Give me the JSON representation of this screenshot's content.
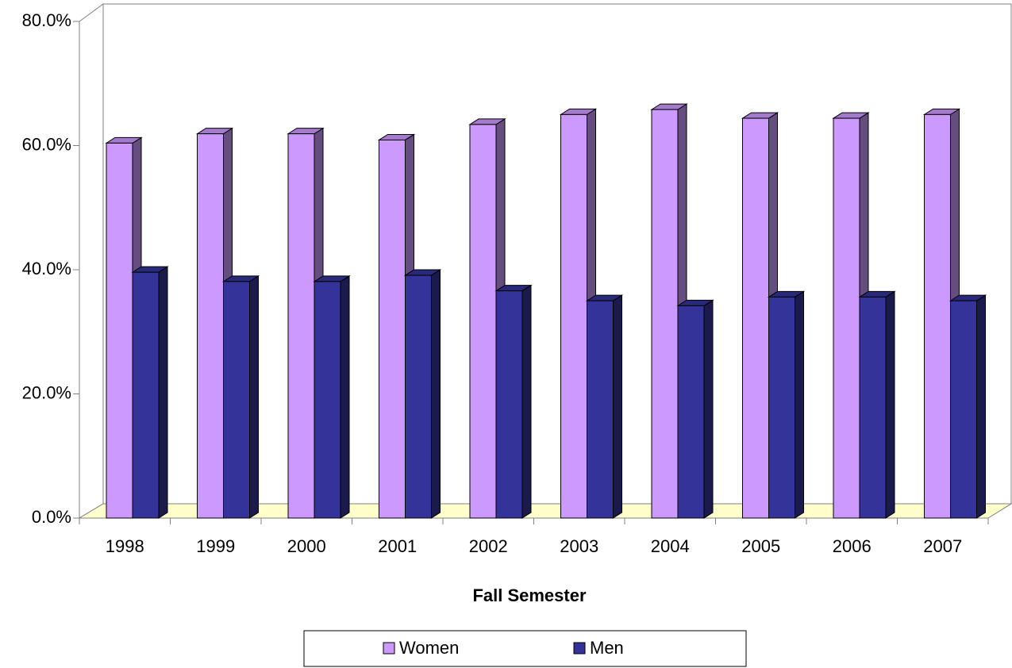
{
  "chart_data": {
    "type": "bar3d",
    "x_label": "Fall Semester",
    "categories": [
      "1998",
      "1999",
      "2000",
      "2001",
      "2002",
      "2003",
      "2004",
      "2005",
      "2006",
      "2007"
    ],
    "series": [
      {
        "name": "Women",
        "color": "#cc99ff",
        "values": [
          60.4,
          61.9,
          61.9,
          60.9,
          63.4,
          65.0,
          65.8,
          64.4,
          64.4,
          65.0
        ]
      },
      {
        "name": "Men",
        "color": "#333399",
        "values": [
          39.6,
          38.1,
          38.1,
          39.1,
          36.6,
          35.0,
          34.2,
          35.6,
          35.6,
          35.0
        ]
      }
    ],
    "ylim": [
      0,
      80
    ],
    "yticks": [
      {
        "value": 0,
        "label": "0.0%"
      },
      {
        "value": 20,
        "label": "20.0%"
      },
      {
        "value": 40,
        "label": "40.0%"
      },
      {
        "value": 60,
        "label": "60.0%"
      },
      {
        "value": 80,
        "label": "80.0%"
      }
    ],
    "grid": false,
    "legend": "bottom"
  }
}
